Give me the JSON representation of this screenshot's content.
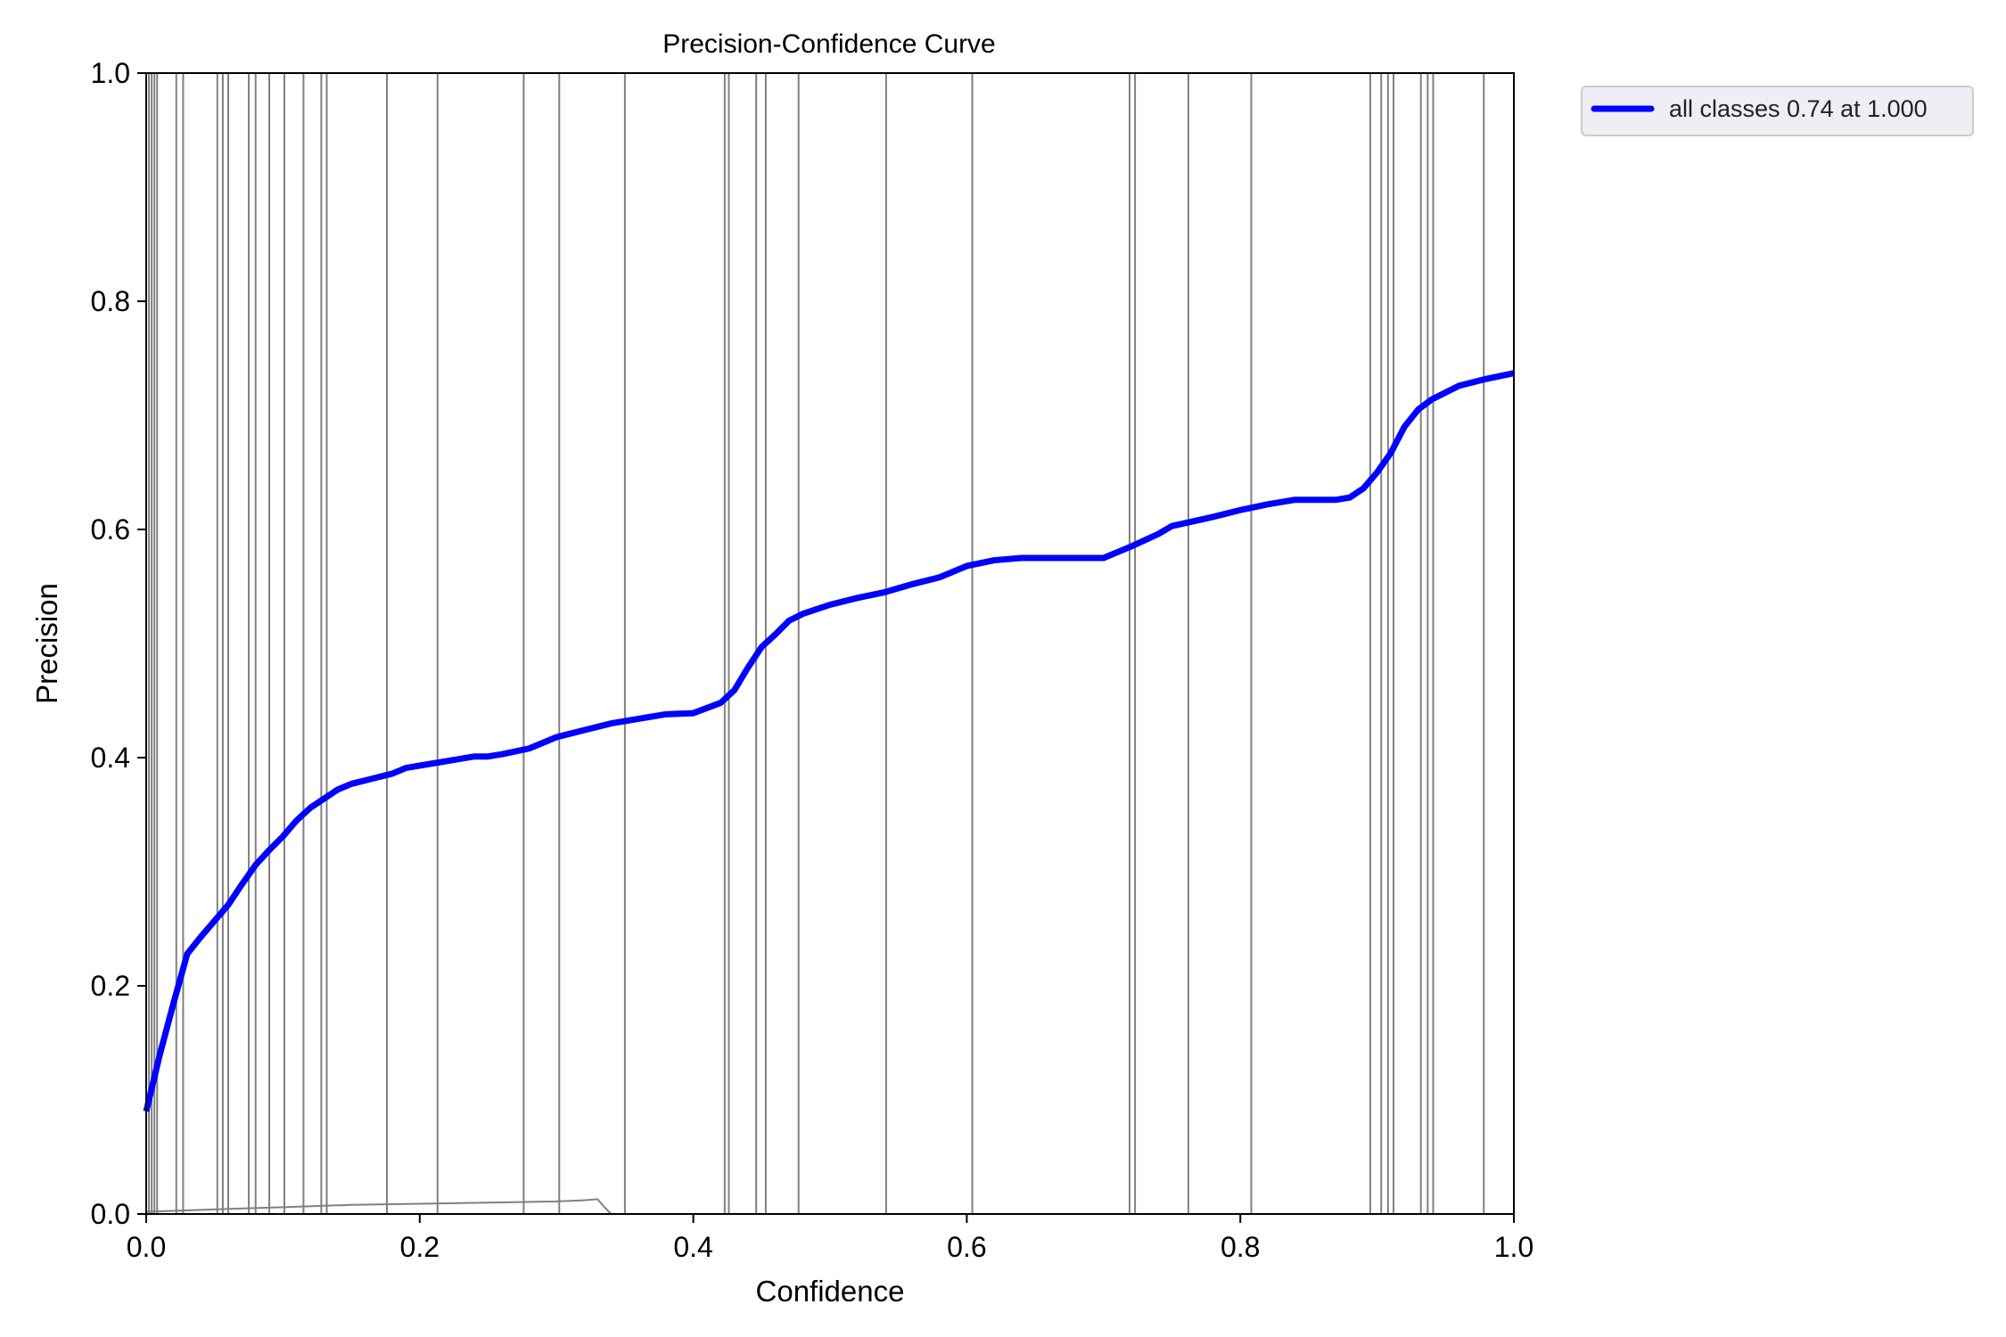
{
  "chart_data": {
    "type": "line",
    "title": "Precision-Confidence Curve",
    "xlabel": "Confidence",
    "ylabel": "Precision",
    "xlim": [
      0,
      1
    ],
    "ylim": [
      0,
      1
    ],
    "x_ticks": [
      "0.0",
      "0.2",
      "0.4",
      "0.6",
      "0.8",
      "1.0"
    ],
    "y_ticks": [
      "0.0",
      "0.2",
      "0.4",
      "0.6",
      "0.8",
      "1.0"
    ],
    "grid": false,
    "legend_placement": "outside-top-right",
    "main_series_color": "#0000ff",
    "class_series_color": "#808080",
    "series": [
      {
        "name": "all classes 0.74 at 1.000",
        "x": [
          0.0,
          0.01,
          0.02,
          0.03,
          0.04,
          0.05,
          0.06,
          0.07,
          0.08,
          0.09,
          0.1,
          0.11,
          0.12,
          0.13,
          0.14,
          0.15,
          0.16,
          0.17,
          0.18,
          0.19,
          0.2,
          0.22,
          0.24,
          0.25,
          0.26,
          0.28,
          0.3,
          0.32,
          0.34,
          0.36,
          0.38,
          0.4,
          0.42,
          0.43,
          0.44,
          0.45,
          0.46,
          0.47,
          0.48,
          0.5,
          0.52,
          0.54,
          0.56,
          0.58,
          0.6,
          0.62,
          0.64,
          0.66,
          0.68,
          0.7,
          0.72,
          0.74,
          0.75,
          0.78,
          0.8,
          0.82,
          0.84,
          0.86,
          0.87,
          0.88,
          0.89,
          0.9,
          0.91,
          0.92,
          0.93,
          0.94,
          0.95,
          0.96,
          0.98,
          1.0
        ],
        "y": [
          0.09,
          0.14,
          0.185,
          0.228,
          0.243,
          0.257,
          0.271,
          0.289,
          0.306,
          0.319,
          0.331,
          0.345,
          0.356,
          0.364,
          0.372,
          0.377,
          0.38,
          0.383,
          0.386,
          0.391,
          0.393,
          0.397,
          0.401,
          0.401,
          0.403,
          0.408,
          0.418,
          0.424,
          0.43,
          0.434,
          0.438,
          0.439,
          0.448,
          0.459,
          0.479,
          0.497,
          0.508,
          0.52,
          0.526,
          0.534,
          0.54,
          0.545,
          0.552,
          0.558,
          0.568,
          0.573,
          0.575,
          0.575,
          0.575,
          0.575,
          0.585,
          0.596,
          0.603,
          0.611,
          0.617,
          0.622,
          0.626,
          0.626,
          0.626,
          0.628,
          0.636,
          0.65,
          0.667,
          0.69,
          0.705,
          0.714,
          0.72,
          0.726,
          0.732,
          0.737
        ]
      }
    ],
    "class_curves": {
      "vertical_x": [
        0.0,
        0.002,
        0.004,
        0.006,
        0.008,
        0.022,
        0.027,
        0.052,
        0.056,
        0.06,
        0.075,
        0.08,
        0.09,
        0.101,
        0.115,
        0.128,
        0.132,
        0.176,
        0.213,
        0.276,
        0.302,
        0.35,
        0.423,
        0.426,
        0.446,
        0.453,
        0.477,
        0.541,
        0.604,
        0.719,
        0.723,
        0.762,
        0.808,
        0.895,
        0.903,
        0.908,
        0.912,
        0.932,
        0.937,
        0.941,
        0.978
      ],
      "low_curve_x": [
        0.0,
        0.05,
        0.1,
        0.15,
        0.2,
        0.25,
        0.3,
        0.32,
        0.33,
        0.335,
        0.34
      ],
      "low_curve_y": [
        0.002,
        0.004,
        0.006,
        0.008,
        0.009,
        0.01,
        0.011,
        0.012,
        0.013,
        0.006,
        0.0
      ]
    }
  }
}
